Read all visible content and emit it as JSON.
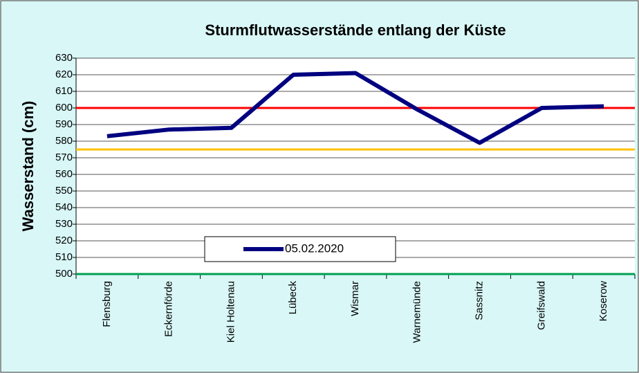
{
  "chart_data": {
    "type": "line",
    "title": "Sturmflutwasserstände entlang der Küste",
    "y_label": "Wasserstand (cm)",
    "categories": [
      "Flensburg",
      "Eckernförde",
      "Kiel Holtenau",
      "Lübeck",
      "Wismar",
      "Warnemünde",
      "Sassnitz",
      "Greifswald",
      "Koserow"
    ],
    "series": [
      {
        "name": "05.02.2020",
        "color": "#000080",
        "values": [
          583,
          587,
          588,
          620,
          621,
          599,
          579,
          600,
          601
        ]
      }
    ],
    "reference_lines": [
      {
        "value": 600,
        "color": "#ff0000"
      },
      {
        "value": 575,
        "color": "#ffc000"
      },
      {
        "value": 500,
        "color": "#00a050"
      }
    ],
    "ylim": [
      500,
      630
    ],
    "yticks": [
      500,
      510,
      520,
      530,
      540,
      550,
      560,
      570,
      580,
      590,
      600,
      610,
      620,
      630
    ],
    "grid": true,
    "legend": "bottom-left"
  }
}
